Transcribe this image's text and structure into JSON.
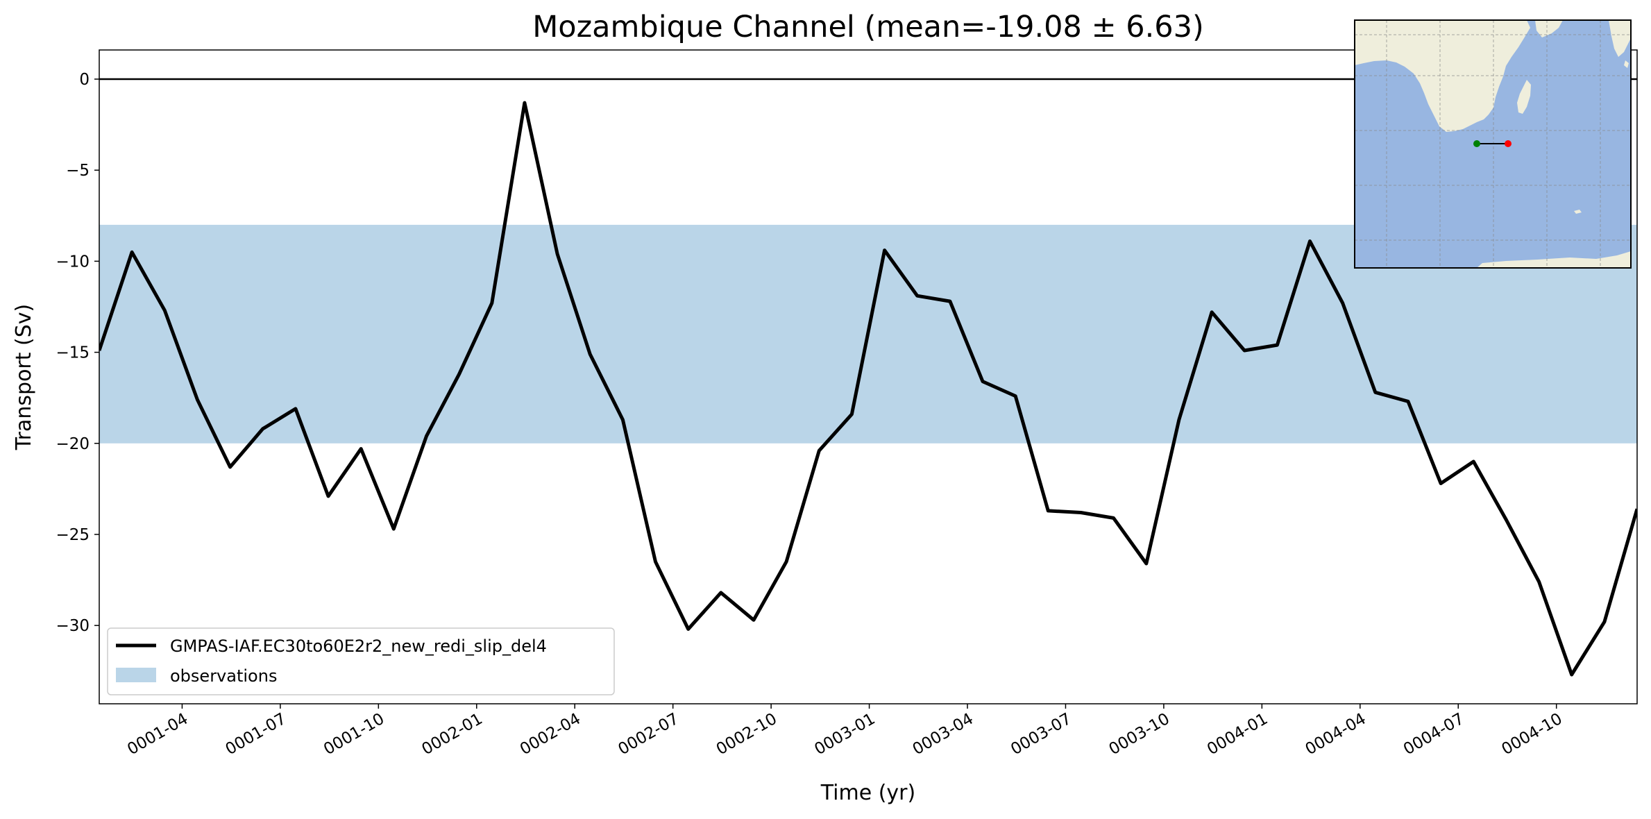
{
  "chart_data": {
    "type": "line",
    "title": "Mozambique Channel (mean=-19.08 ± 6.63)",
    "xlabel": "Time (yr)",
    "ylabel": "Transport (Sv)",
    "ylim": [
      -34.3,
      1.6
    ],
    "yticks": [
      0,
      -5,
      -10,
      -15,
      -20,
      -25,
      -30
    ],
    "xticks": [
      "0001-04",
      "0001-07",
      "0001-10",
      "0002-01",
      "0002-04",
      "0002-07",
      "0002-10",
      "0003-01",
      "0003-04",
      "0003-07",
      "0003-10",
      "0004-01",
      "0004-04",
      "0004-07",
      "0004-10"
    ],
    "x_start": "0001-01-15",
    "x_end": "0004-12-15",
    "grid": false,
    "legend_position": "lower-left",
    "zero_line": 0,
    "observations": {
      "name": "observations",
      "range": [
        -20,
        -8
      ],
      "color": "#bad5e8"
    },
    "series": [
      {
        "name": "GMPAS-IAF.EC30to60E2r2_new_redi_slip_del4",
        "color": "#000000",
        "x": [
          "0001-01-15",
          "0001-02-15",
          "0001-03-15",
          "0001-04-15",
          "0001-05-15",
          "0001-06-15",
          "0001-07-15",
          "0001-08-15",
          "0001-09-15",
          "0001-10-15",
          "0001-11-15",
          "0001-12-15",
          "0002-01-15",
          "0002-02-15",
          "0002-03-15",
          "0002-04-15",
          "0002-05-15",
          "0002-06-15",
          "0002-07-15",
          "0002-08-15",
          "0002-09-15",
          "0002-10-15",
          "0002-11-15",
          "0002-12-15",
          "0003-01-15",
          "0003-02-15",
          "0003-03-15",
          "0003-04-15",
          "0003-05-15",
          "0003-06-15",
          "0003-07-15",
          "0003-08-15",
          "0003-09-15",
          "0003-10-15",
          "0003-11-15",
          "0003-12-15",
          "0004-01-15",
          "0004-02-15",
          "0004-03-15",
          "0004-04-15",
          "0004-05-15",
          "0004-06-15",
          "0004-07-15",
          "0004-08-15",
          "0004-09-15",
          "0004-10-15",
          "0004-11-15",
          "0004-12-15"
        ],
        "values": [
          -14.9,
          -9.5,
          -12.7,
          -17.6,
          -21.3,
          -19.2,
          -18.1,
          -22.9,
          -20.3,
          -24.7,
          -19.6,
          -16.2,
          -12.3,
          -1.3,
          -9.6,
          -15.1,
          -18.7,
          -26.5,
          -30.2,
          -28.2,
          -29.7,
          -26.5,
          -20.4,
          -18.4,
          -9.4,
          -11.9,
          -12.2,
          -16.6,
          -17.4,
          -23.7,
          -23.8,
          -24.1,
          -26.6,
          -18.7,
          -12.8,
          -14.9,
          -14.6,
          -8.9,
          -12.3,
          -17.2,
          -17.7,
          -22.2,
          -21.0,
          -24.2,
          -27.6,
          -32.7,
          -29.8,
          -23.6
        ]
      }
    ],
    "inset_map": {
      "land_color": "#efeedc",
      "ocean_color": "#98b6e1",
      "transect_start_color": "#008000",
      "transect_end_color": "#ff0000"
    }
  }
}
